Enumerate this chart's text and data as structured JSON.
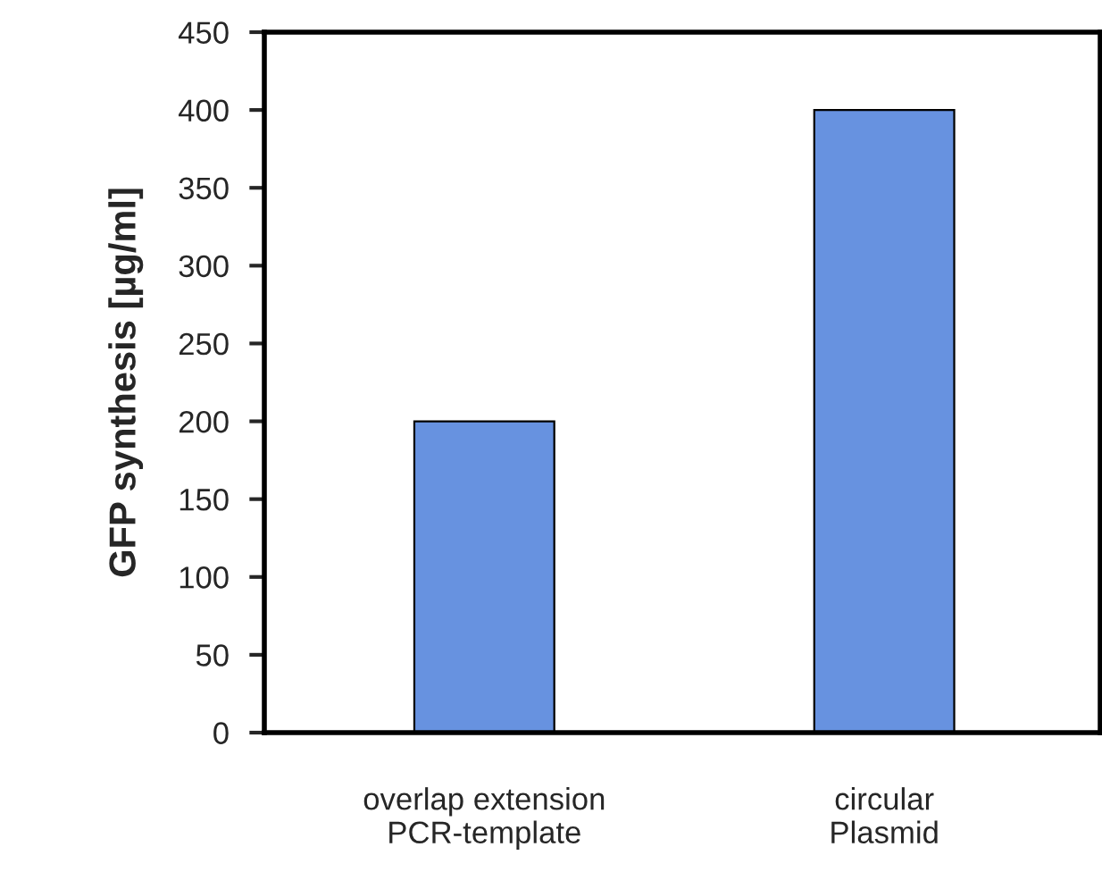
{
  "chart_data": {
    "type": "bar",
    "ylabel": "GFP synthesis [µg/ml]",
    "categories": [
      "overlap extension\nPCR-template",
      "circular\nPlasmid"
    ],
    "values": [
      200,
      400
    ],
    "color": "#6792e0",
    "ylim": [
      0,
      450
    ],
    "yticks": [
      0,
      50,
      100,
      150,
      200,
      250,
      300,
      350,
      400,
      450
    ],
    "grid": false,
    "legend": false
  }
}
